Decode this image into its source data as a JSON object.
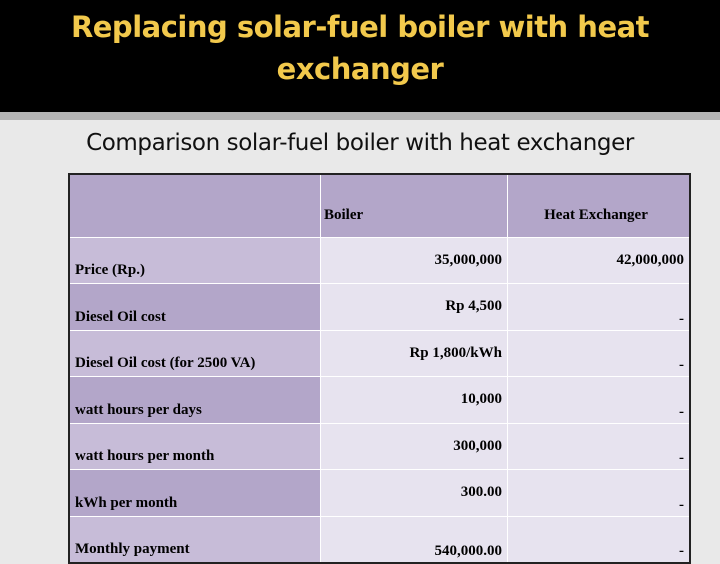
{
  "slide": {
    "title": "Replacing solar-fuel boiler with heat exchanger",
    "subtitle": "Comparison solar-fuel boiler with heat exchanger",
    "colors": {
      "title": "#f2c94c",
      "title_bar": "#000000",
      "label_cells": "#c7bcd8",
      "header_cells": "#b3a6c9",
      "value_cells": "#e7e3ef"
    }
  },
  "table": {
    "columns": [
      "",
      "Boiler",
      "Heat Exchanger"
    ],
    "rows": [
      {
        "label": "Price (Rp.)",
        "boiler": "35,000,000",
        "heat_exchanger": "42,000,000"
      },
      {
        "label": "Diesel Oil cost",
        "boiler": "Rp 4,500",
        "heat_exchanger": "-"
      },
      {
        "label": "Diesel Oil cost (for 2500 VA)",
        "boiler": "Rp 1,800/kWh",
        "heat_exchanger": "-"
      },
      {
        "label": "watt hours per days",
        "boiler": "10,000",
        "heat_exchanger": "-"
      },
      {
        "label": "watt hours per month",
        "boiler": "300,000",
        "heat_exchanger": "-"
      },
      {
        "label": "kWh per month",
        "boiler": "300.00",
        "heat_exchanger": "-"
      },
      {
        "label": "Monthly payment",
        "boiler": "540,000.00",
        "heat_exchanger": "-"
      }
    ]
  }
}
